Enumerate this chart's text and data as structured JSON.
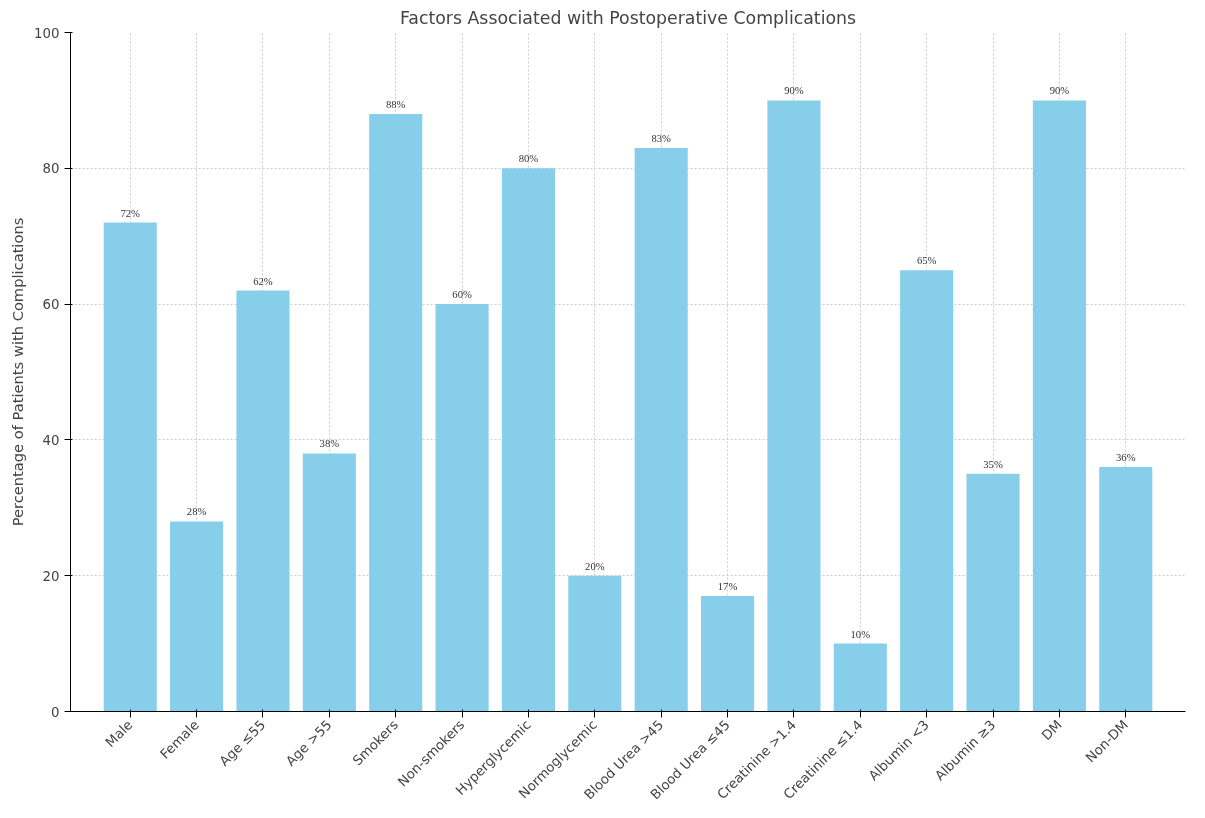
{
  "chart_data": {
    "type": "bar",
    "title": "Factors Associated with Postoperative Complications",
    "ylabel": "Percentage of Patients with Complications",
    "categories": [
      "Male",
      "Female",
      "Age ≤55",
      "Age >55",
      "Smokers",
      "Non-smokers",
      "Hyperglycemic",
      "Normoglycemic",
      "Blood Urea >45",
      "Blood Urea ≤45",
      "Creatinine >1.4",
      "Creatinine ≤1.4",
      "Albumin <3",
      "Albumin ≥3",
      "DM",
      "Non-DM"
    ],
    "values": [
      72,
      28,
      62,
      38,
      88,
      60,
      80,
      20,
      83,
      17,
      90,
      10,
      65,
      35,
      90,
      36
    ],
    "value_labels": [
      "72%",
      "28%",
      "62%",
      "38%",
      "88%",
      "60%",
      "80%",
      "20%",
      "83%",
      "17%",
      "90%",
      "10%",
      "65%",
      "35%",
      "90%",
      "36%"
    ],
    "color": "#87ceeb",
    "ylim": [
      0,
      100
    ],
    "yticks": [
      0,
      20,
      40,
      60,
      80,
      100
    ],
    "grid": true
  }
}
